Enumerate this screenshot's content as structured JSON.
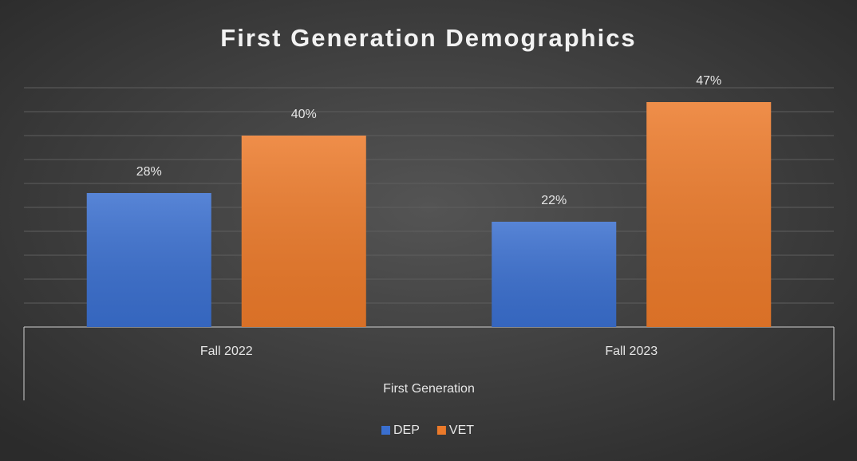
{
  "chart_data": {
    "type": "bar",
    "title": "First Generation Demographics",
    "categories": [
      "Fall 2022",
      "Fall 2023"
    ],
    "group_label": "First Generation",
    "series": [
      {
        "name": "DEP",
        "color": "#3a6fcf",
        "values": [
          28,
          22
        ],
        "value_labels": [
          "28%",
          "22%"
        ]
      },
      {
        "name": "VET",
        "color": "#ec7a2a",
        "values": [
          40,
          47
        ],
        "value_labels": [
          "40%",
          "47%"
        ]
      }
    ],
    "ylim": [
      0,
      50
    ],
    "yticks": [
      0,
      5,
      10,
      15,
      20,
      25,
      30,
      35,
      40,
      45,
      50
    ],
    "grid": true,
    "legend": "bottom"
  }
}
